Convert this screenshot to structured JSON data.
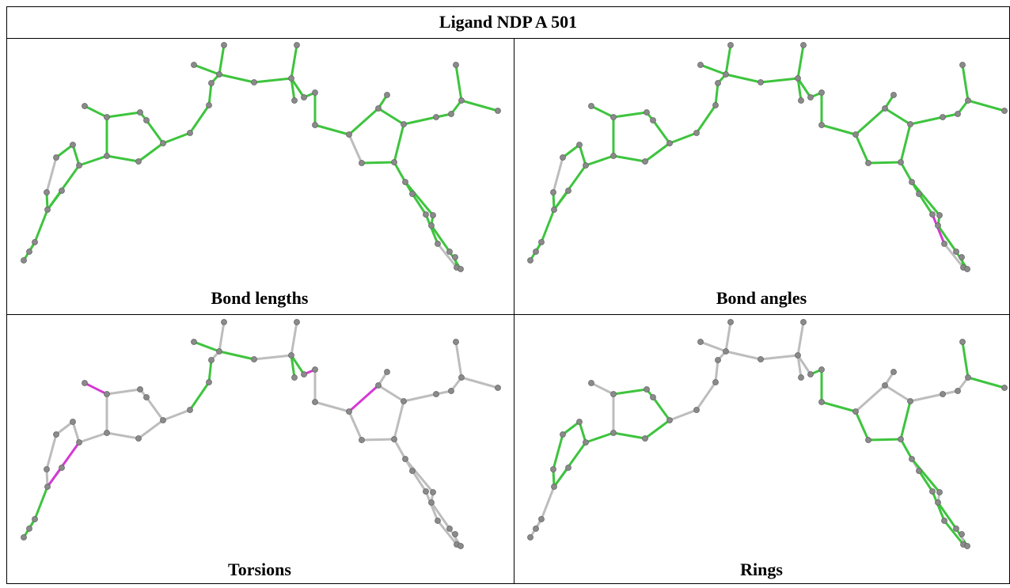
{
  "header": {
    "title": "Ligand NDP A 501"
  },
  "panels": [
    {
      "caption": "Bond lengths"
    },
    {
      "caption": "Bond angles"
    },
    {
      "caption": "Torsions"
    },
    {
      "caption": "Rings"
    }
  ]
}
